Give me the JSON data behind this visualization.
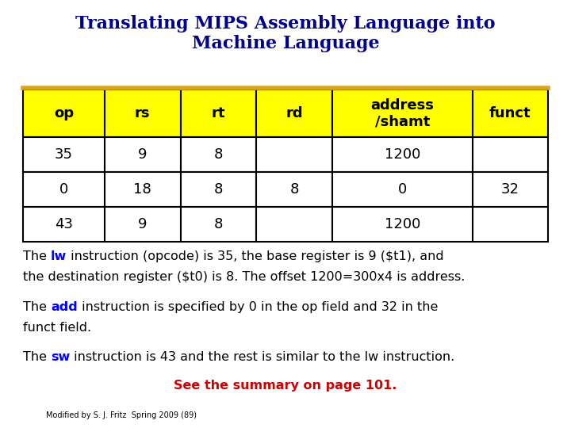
{
  "title_line1": "Translating MIPS Assembly Language into",
  "title_line2": "Machine Language",
  "title_color": "#00008B",
  "title_fontsize": 16,
  "divider_color": "#DAA520",
  "table_header": [
    "op",
    "rs",
    "rt",
    "rd",
    "address\n/shamt",
    "funct"
  ],
  "table_rows": [
    [
      "35",
      "9",
      "8",
      "",
      "1200",
      ""
    ],
    [
      "0",
      "18",
      "8",
      "8",
      "0",
      "32"
    ],
    [
      "43",
      "9",
      "8",
      "",
      "1200",
      ""
    ]
  ],
  "header_bg": "#FFFF00",
  "row_bg": "#FFFFFF",
  "border_color": "#000000",
  "cell_text_color": "#000000",
  "header_text_color": "#000000",
  "table_fontsize": 13,
  "para1_line1": [
    {
      "text": "The ",
      "color": "#000000",
      "bold": false
    },
    {
      "text": "lw",
      "color": "#0000FF",
      "bold": true
    },
    {
      "text": " instruction (opcode) is 35, the base register is 9 ($t1), and",
      "color": "#000000",
      "bold": false
    }
  ],
  "para1_line2": [
    {
      "text": "the destination register ($t0) is 8. The offset 1200=300x4 is address.",
      "color": "#000000",
      "bold": false
    }
  ],
  "para2_line1": [
    {
      "text": "The ",
      "color": "#000000",
      "bold": false
    },
    {
      "text": "add",
      "color": "#0000FF",
      "bold": true
    },
    {
      "text": " instruction is specified by 0 in the op field and 32 in the",
      "color": "#000000",
      "bold": false
    }
  ],
  "para2_line2": [
    {
      "text": "funct field.",
      "color": "#000000",
      "bold": false
    }
  ],
  "para3_line1": [
    {
      "text": "The ",
      "color": "#000000",
      "bold": false
    },
    {
      "text": "sw",
      "color": "#0000FF",
      "bold": true
    },
    {
      "text": " instruction is 43 and the rest is similar to the lw instruction.",
      "color": "#000000",
      "bold": false
    }
  ],
  "summary_text": "See the summary on page 101.",
  "summary_color": "#CC0000",
  "footer_text": "Modified by S. J. Fritz  Spring 2009 (89)",
  "footer_color": "#000000",
  "footer_fontsize": 7,
  "body_fontsize": 11.5,
  "background_color": "#FFFFFF"
}
